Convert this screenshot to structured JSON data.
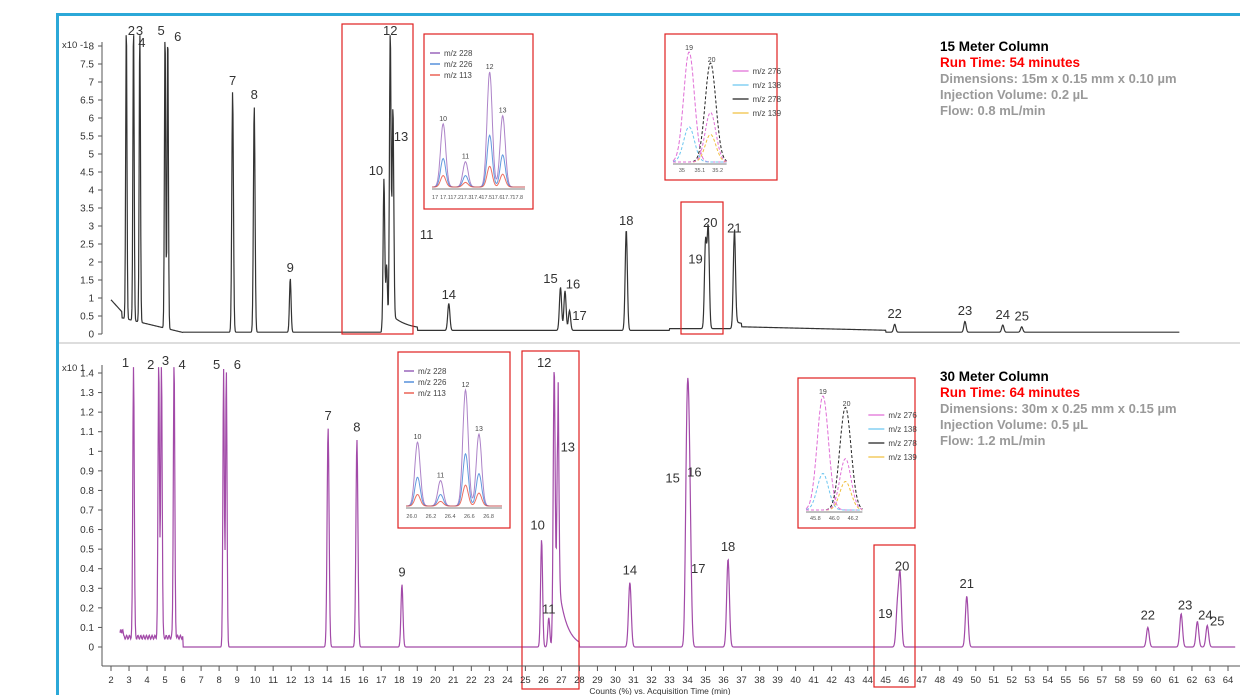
{
  "colors": {
    "frame": "#2ba8d8",
    "trace_top": "#333333",
    "trace_bottom": "#a24aa8",
    "highlight": "#e02020",
    "run_time": "#ff0000",
    "info": "#9a9a9a",
    "title": "#000000"
  },
  "x_axis": {
    "label": "Counts (%) vs. Acquisition Time (min)",
    "ticks": [
      2,
      3,
      4,
      5,
      6,
      7,
      8,
      9,
      10,
      11,
      12,
      13,
      14,
      15,
      16,
      17,
      18,
      19,
      20,
      21,
      22,
      23,
      24,
      25,
      26,
      27,
      28,
      29,
      30,
      31,
      32,
      33,
      34,
      35,
      36,
      37,
      38,
      39,
      40,
      41,
      42,
      43,
      44,
      45,
      46,
      47,
      48,
      49,
      50,
      51,
      52,
      53,
      54,
      55,
      56,
      57,
      58,
      59,
      60,
      61,
      62,
      63,
      64
    ]
  },
  "top_panel": {
    "scale_label": "x10 -1",
    "title": "15 Meter Column",
    "run_time": "Run Time: 54 minutes",
    "info": [
      "Dimensions: 15m x 0.15 mm x 0.10 µm",
      "Injection Volume: 0.2 µL",
      "Flow: 0.8 mL/min"
    ],
    "y_ticks": [
      "8",
      "7.5",
      "7",
      "6.5",
      "6",
      "5.5",
      "5",
      "4.5",
      "4",
      "3.5",
      "3",
      "2.5",
      "2",
      "1.5",
      "1",
      "0.5",
      "0"
    ],
    "inset1": {
      "legend": [
        "m/z 228",
        "m/z 226",
        "m/z 113"
      ],
      "ticks": [
        "17",
        "17.1",
        "17.2",
        "17.3",
        "17.4",
        "17.5",
        "17.6",
        "17.7",
        "17.8"
      ]
    },
    "inset2": {
      "legend": [
        "m/z 276",
        "m/z 138",
        "m/z 278",
        "m/z 139"
      ],
      "ticks": [
        "35",
        "35.1",
        "35.2"
      ]
    }
  },
  "bottom_panel": {
    "scale_label": "x10 1",
    "title": "30 Meter Column",
    "run_time": "Run Time: 64 minutes",
    "info": [
      "Dimensions: 30m x 0.25 mm x 0.15 µm",
      "Injection Volume: 0.5 µL",
      "Flow: 1.2 mL/min"
    ],
    "y_ticks": [
      "1.4",
      "1.3",
      "1.2",
      "1.1",
      "1",
      "0.9",
      "0.8",
      "0.7",
      "0.6",
      "0.5",
      "0.4",
      "0.3",
      "0.2",
      "0.1",
      "0"
    ],
    "inset1": {
      "legend": [
        "m/z 228",
        "m/z 226",
        "m/z 113"
      ],
      "ticks": [
        "26.0",
        "26.2",
        "26.4",
        "26.6",
        "26.8"
      ]
    },
    "inset2": {
      "legend": [
        "m/z 276",
        "m/z 138",
        "m/z 278",
        "m/z 139"
      ],
      "ticks": [
        "45.8",
        "46.0",
        "46.2"
      ]
    }
  },
  "chart_data": [
    {
      "type": "line",
      "title": "15 Meter Column",
      "xlabel": "Counts (%) vs. Acquisition Time (min)",
      "ylabel": "x10 -1",
      "xlim": [
        1.5,
        64.5
      ],
      "ylim": [
        0,
        8.5
      ],
      "peaks": [
        {
          "label": "2",
          "rt": 2.85,
          "height": 8.3
        },
        {
          "label": "3",
          "rt": 3.25,
          "height": 8.3
        },
        {
          "label": "4",
          "rt": 3.6,
          "height": 8.3
        },
        {
          "label": "5",
          "rt": 5.0,
          "height": 8.3
        },
        {
          "label": "6",
          "rt": 5.15,
          "height": 8.3
        },
        {
          "label": "7",
          "rt": 8.75,
          "height": 6.7
        },
        {
          "label": "8",
          "rt": 9.95,
          "height": 6.3
        },
        {
          "label": "9",
          "rt": 11.95,
          "height": 1.5
        },
        {
          "label": "10",
          "rt": 17.15,
          "height": 4.2
        },
        {
          "label": "11",
          "rt": 17.3,
          "height": 1.8
        },
        {
          "label": "12",
          "rt": 17.5,
          "height": 8.3
        },
        {
          "label": "13",
          "rt": 17.65,
          "height": 6.2
        },
        {
          "label": "14",
          "rt": 20.75,
          "height": 0.75
        },
        {
          "label": "15",
          "rt": 26.95,
          "height": 1.2
        },
        {
          "label": "16",
          "rt": 27.2,
          "height": 1.1
        },
        {
          "label": "17",
          "rt": 27.45,
          "height": 0.55
        },
        {
          "label": "18",
          "rt": 30.6,
          "height": 2.8
        },
        {
          "label": "19",
          "rt": 35.0,
          "height": 2.4
        },
        {
          "label": "20",
          "rt": 35.15,
          "height": 2.8
        },
        {
          "label": "21",
          "rt": 36.6,
          "height": 2.65
        },
        {
          "label": "22",
          "rt": 45.5,
          "height": 0.22
        },
        {
          "label": "23",
          "rt": 49.4,
          "height": 0.3
        },
        {
          "label": "24",
          "rt": 51.5,
          "height": 0.2
        },
        {
          "label": "25",
          "rt": 52.55,
          "height": 0.15
        }
      ]
    },
    {
      "type": "line",
      "title": "30 Meter Column",
      "xlabel": "Counts (%) vs. Acquisition Time (min)",
      "ylabel": "x10 1",
      "xlim": [
        1.5,
        64.5
      ],
      "ylim": [
        -0.05,
        1.45
      ],
      "peaks": [
        {
          "label": "1",
          "rt": 3.25,
          "height": 1.42
        },
        {
          "label": "2",
          "rt": 4.65,
          "height": 1.42
        },
        {
          "label": "3",
          "rt": 4.8,
          "height": 1.42
        },
        {
          "label": "4",
          "rt": 5.5,
          "height": 1.42
        },
        {
          "label": "5",
          "rt": 8.25,
          "height": 1.42
        },
        {
          "label": "6",
          "rt": 8.4,
          "height": 1.42
        },
        {
          "label": "7",
          "rt": 14.05,
          "height": 1.12
        },
        {
          "label": "8",
          "rt": 15.65,
          "height": 1.06
        },
        {
          "label": "9",
          "rt": 18.15,
          "height": 0.32
        },
        {
          "label": "10",
          "rt": 25.9,
          "height": 0.55
        },
        {
          "label": "11",
          "rt": 26.3,
          "height": 0.15
        },
        {
          "label": "12",
          "rt": 26.6,
          "height": 1.43
        },
        {
          "label": "13",
          "rt": 26.8,
          "height": 1.1
        },
        {
          "label": "14",
          "rt": 30.8,
          "height": 0.33
        },
        {
          "label": "15",
          "rt": 33.95,
          "height": 0.8
        },
        {
          "label": "16",
          "rt": 34.05,
          "height": 0.82
        },
        {
          "label": "17",
          "rt": 34.15,
          "height": 0.45
        },
        {
          "label": "18",
          "rt": 36.25,
          "height": 0.45
        },
        {
          "label": "19",
          "rt": 45.65,
          "height": 0.2
        },
        {
          "label": "20",
          "rt": 45.8,
          "height": 0.36
        },
        {
          "label": "21",
          "rt": 49.5,
          "height": 0.26
        },
        {
          "label": "22",
          "rt": 59.55,
          "height": 0.1
        },
        {
          "label": "23",
          "rt": 61.4,
          "height": 0.17
        },
        {
          "label": "24",
          "rt": 62.3,
          "height": 0.13
        },
        {
          "label": "25",
          "rt": 62.85,
          "height": 0.11
        }
      ]
    }
  ]
}
